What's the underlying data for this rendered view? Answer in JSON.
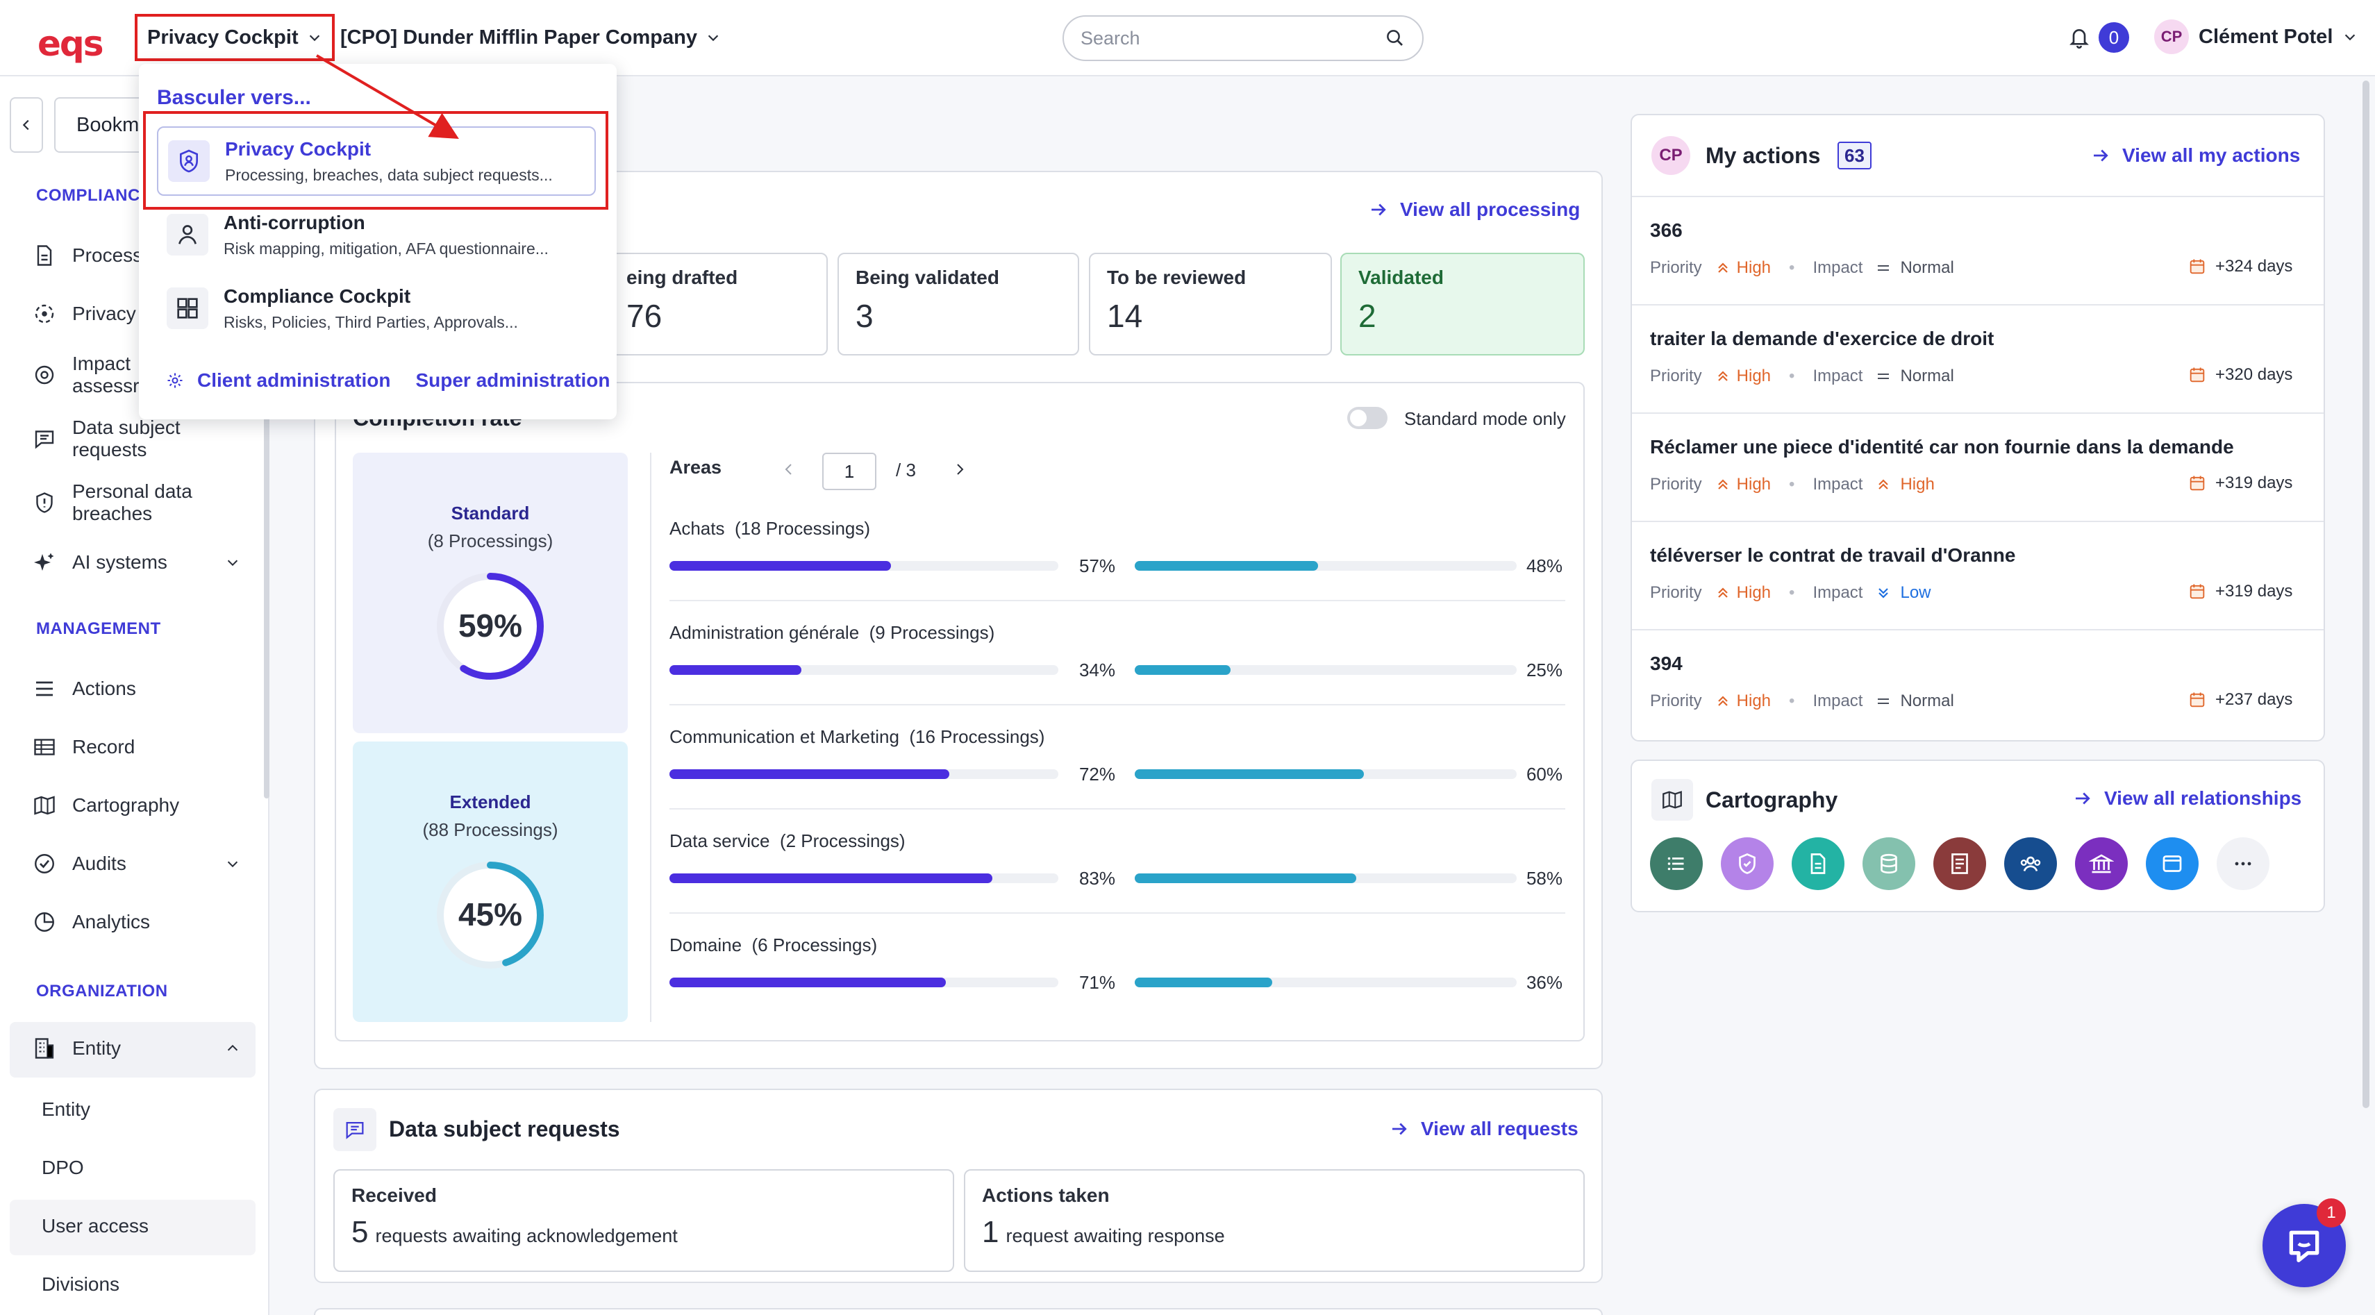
{
  "header": {
    "logo": "eqs",
    "module_selector": "Privacy Cockpit",
    "company_selector": "[CPO] Dunder Mifflin Paper Company",
    "search_placeholder": "Search",
    "notifications_count": "0",
    "user_initials": "CP",
    "user_name": "Clément Potel"
  },
  "sidebar": {
    "bookmarks_label": "Bookm",
    "sections": {
      "compliance": "COMPLIANCI",
      "management": "MANAGEMENT",
      "organization": "ORGANIZATION"
    },
    "items": {
      "processing": "Process",
      "privacy": "Privacy",
      "impact_line1": "Impact",
      "impact_line2": "assessr",
      "dsr_line1": "Data subject",
      "dsr_line2": "requests",
      "breaches_line1": "Personal data",
      "breaches_line2": "breaches",
      "ai_systems": "AI systems",
      "actions": "Actions",
      "record": "Record",
      "cartography": "Cartography",
      "audits": "Audits",
      "analytics": "Analytics",
      "entity": "Entity"
    },
    "entity_sub": {
      "entity": "Entity",
      "dpo": "DPO",
      "user_access": "User access",
      "divisions": "Divisions"
    }
  },
  "dropdown": {
    "title": "Basculer vers...",
    "options": [
      {
        "name": "Privacy Cockpit",
        "desc": "Processing, breaches, data subject requests..."
      },
      {
        "name": "Anti-corruption",
        "desc": "Risk mapping, mitigation, AFA questionnaire..."
      },
      {
        "name": "Compliance Cockpit",
        "desc": "Risks, Policies, Third Parties, Approvals..."
      }
    ],
    "client_admin": "Client administration",
    "super_admin": "Super administration"
  },
  "processing": {
    "view_all": "View all processing",
    "stats": [
      {
        "label": "eing drafted",
        "value": "76"
      },
      {
        "label": "Being validated",
        "value": "3"
      },
      {
        "label": "To be reviewed",
        "value": "14"
      },
      {
        "label": "Validated",
        "value": "2"
      }
    ]
  },
  "completion": {
    "title": "Completion rate",
    "standard_mode_label": "Standard mode only",
    "standard": {
      "title": "Standard",
      "sub": "(8 Processings)",
      "pct_label": "59%",
      "pct": 59
    },
    "extended": {
      "title": "Extended",
      "sub": "(88 Processings)",
      "pct_label": "45%",
      "pct": 45
    },
    "areas_label": "Areas",
    "page_current": "1",
    "page_total": "/ 3",
    "areas": [
      {
        "name": "Achats",
        "count": "(18 Processings)",
        "a_label": "57%",
        "a": 57,
        "b_label": "48%",
        "b": 48
      },
      {
        "name": "Administration générale",
        "count": "(9 Processings)",
        "a_label": "34%",
        "a": 34,
        "b_label": "25%",
        "b": 25
      },
      {
        "name": "Communication et Marketing",
        "count": "(16 Processings)",
        "a_label": "72%",
        "a": 72,
        "b_label": "60%",
        "b": 60
      },
      {
        "name": "Data service",
        "count": "(2 Processings)",
        "a_label": "83%",
        "a": 83,
        "b_label": "58%",
        "b": 58
      },
      {
        "name": "Domaine",
        "count": "(6 Processings)",
        "a_label": "71%",
        "a": 71,
        "b_label": "36%",
        "b": 36
      }
    ]
  },
  "dsr": {
    "title": "Data subject requests",
    "view_all": "View all requests",
    "received_label": "Received",
    "received_count": "5",
    "received_text": "requests awaiting acknowledgement",
    "actions_label": "Actions taken",
    "actions_count": "1",
    "actions_text": "request awaiting response"
  },
  "my_actions": {
    "initials": "CP",
    "title": "My actions",
    "count": "63",
    "view_all": "View all my actions",
    "priority_label": "Priority",
    "impact_label": "Impact",
    "items": [
      {
        "title": "366",
        "priority": "High",
        "impact": "Normal",
        "days": "+324 days"
      },
      {
        "title": "traiter la demande d'exercice de droit",
        "priority": "High",
        "impact": "Normal",
        "days": "+320 days"
      },
      {
        "title": "Réclamer une piece d'identité car non fournie dans la demande",
        "priority": "High",
        "impact": "High",
        "days": "+319 days"
      },
      {
        "title": "téléverser le contrat de travail d'Oranne",
        "priority": "High",
        "impact": "Low",
        "days": "+319 days"
      },
      {
        "title": "394",
        "priority": "High",
        "impact": "Normal",
        "days": "+237 days"
      }
    ]
  },
  "cartography": {
    "title": "Cartography",
    "view_all": "View all relationships",
    "circles": [
      {
        "icon": "list-icon",
        "color": "#3e7d6a"
      },
      {
        "icon": "shield-check-icon",
        "color": "#b483e8"
      },
      {
        "icon": "document-icon",
        "color": "#23b3a4"
      },
      {
        "icon": "database-icon",
        "color": "#84c1ae"
      },
      {
        "icon": "register-icon",
        "color": "#8a3b3b"
      },
      {
        "icon": "people-icon",
        "color": "#164d8f"
      },
      {
        "icon": "institution-icon",
        "color": "#7b2fbf"
      },
      {
        "icon": "window-icon",
        "color": "#1e8ef0"
      },
      {
        "icon": "more-icon",
        "color": "#f1f2f6"
      }
    ]
  },
  "help": {
    "badge": "1"
  },
  "colors": {
    "accent": "#3f3bd7",
    "bar_a": "#4b2ee0",
    "bar_b": "#2aa3c9",
    "high": "#e0662b",
    "low": "#1e6fe0"
  }
}
